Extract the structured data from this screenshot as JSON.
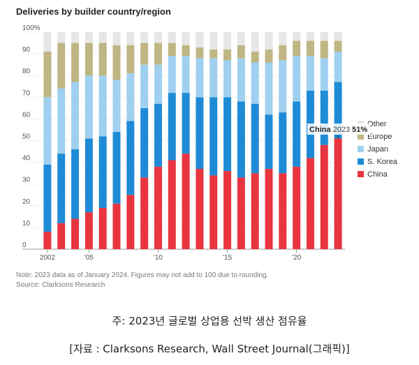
{
  "chart_data": {
    "type": "bar",
    "stacked": true,
    "title": "Deliveries by builder country/region",
    "xlabel": "",
    "ylabel": "",
    "ylim": [
      0,
      100
    ],
    "y_ticks": [
      "100%",
      "90",
      "80",
      "70",
      "60",
      "50",
      "40",
      "30",
      "20",
      "10",
      "0"
    ],
    "x_tick_labels": [
      {
        "index": 0,
        "label": "2002"
      },
      {
        "index": 3,
        "label": "'05"
      },
      {
        "index": 8,
        "label": "'10"
      },
      {
        "index": 13,
        "label": "'15"
      },
      {
        "index": 18,
        "label": "'20"
      }
    ],
    "categories": [
      "2002",
      "2003",
      "2004",
      "2005",
      "2006",
      "2007",
      "2008",
      "2009",
      "2010",
      "2011",
      "2012",
      "2013",
      "2014",
      "2015",
      "2016",
      "2017",
      "2018",
      "2019",
      "2020",
      "2021",
      "2022",
      "2023"
    ],
    "series": [
      {
        "name": "China",
        "color": "#e8353f",
        "values": [
          8,
          12,
          14,
          17,
          19,
          21,
          25,
          33,
          38,
          41,
          44,
          37,
          34,
          36,
          33,
          35,
          37,
          35,
          38,
          42,
          48,
          51
        ]
      },
      {
        "name": "S. Korea",
        "color": "#1f8bd6",
        "values": [
          31,
          32,
          32,
          34,
          33,
          33,
          34,
          32,
          29,
          31,
          28,
          33,
          36,
          34,
          35,
          32,
          25,
          28,
          30,
          31,
          25,
          26
        ]
      },
      {
        "name": "Japan",
        "color": "#9fd0f0",
        "values": [
          31,
          30,
          31,
          29,
          28,
          24,
          22,
          20,
          18,
          17,
          17,
          18,
          18,
          17,
          20,
          19,
          24,
          24,
          21,
          16,
          15,
          14
        ]
      },
      {
        "name": "Europe",
        "color": "#bfb684",
        "values": [
          21,
          21,
          18,
          15,
          15,
          16,
          13,
          10,
          10,
          6,
          5,
          5,
          4,
          5,
          6,
          5,
          6,
          7,
          7,
          7,
          8,
          5
        ]
      },
      {
        "name": "Other",
        "color": "#e6e6e6",
        "values": [
          9,
          5,
          5,
          5,
          5,
          6,
          6,
          5,
          5,
          5,
          6,
          7,
          8,
          8,
          6,
          9,
          8,
          6,
          4,
          4,
          4,
          4
        ]
      }
    ],
    "legend_order": [
      "Other",
      "Europe",
      "Japan",
      "S. Korea",
      "China"
    ],
    "legend_position": "right",
    "annotation": {
      "label": "China",
      "year": "2023",
      "value": "51%"
    }
  },
  "notes": {
    "line1": "Note: 2023 data as of January 2024. Figures may not add to 100 due to rounding.",
    "line2": "Source: Clarksons Research"
  },
  "captions": {
    "line1": "주: 2023년 글로벌 상업용 선박 생산 점유율",
    "line2": "[자료 : Clarksons Research, Wall Street Journal(그래픽)]"
  }
}
